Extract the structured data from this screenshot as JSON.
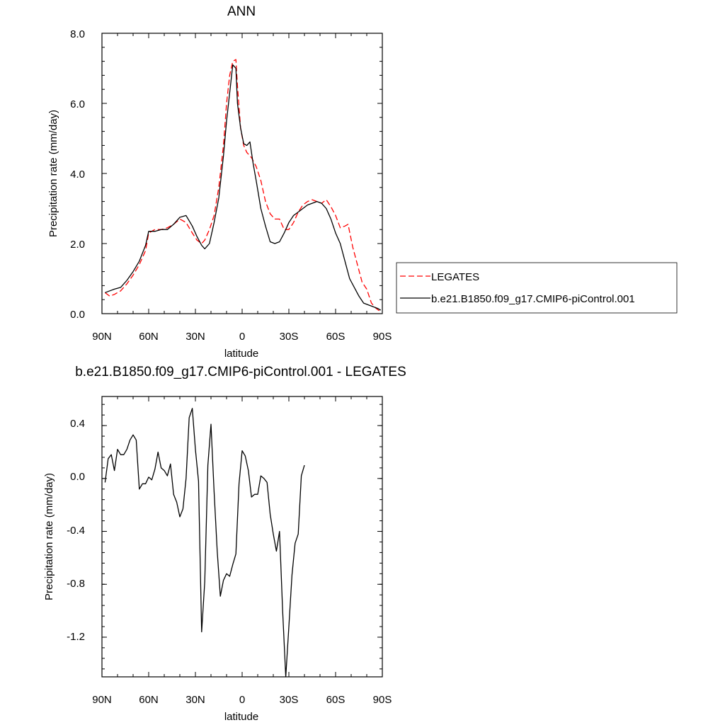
{
  "chart_data": [
    {
      "type": "line",
      "title": "ANN",
      "xlabel": "latitude",
      "ylabel": "Precipitation rate (mm/day)",
      "xlim": [
        90,
        -90
      ],
      "ylim": [
        0,
        8
      ],
      "x_tick_labels": [
        "90N",
        "60N",
        "30N",
        "0",
        "30S",
        "60S",
        "90S"
      ],
      "y_tick_labels": [
        "0.0",
        "2.0",
        "4.0",
        "6.0",
        "8.0"
      ],
      "legend_position": "right",
      "series": [
        {
          "name": "LEGATES",
          "color": "#ff0000",
          "dash": true,
          "points": [
            [
              88,
              0.6
            ],
            [
              85,
              0.5
            ],
            [
              82,
              0.55
            ],
            [
              78,
              0.65
            ],
            [
              74,
              0.85
            ],
            [
              70,
              1.1
            ],
            [
              66,
              1.4
            ],
            [
              62,
              1.8
            ],
            [
              60,
              2.3
            ],
            [
              56,
              2.4
            ],
            [
              52,
              2.4
            ],
            [
              48,
              2.45
            ],
            [
              44,
              2.55
            ],
            [
              40,
              2.7
            ],
            [
              36,
              2.6
            ],
            [
              32,
              2.3
            ],
            [
              29,
              2.1
            ],
            [
              26,
              2.0
            ],
            [
              24,
              2.1
            ],
            [
              21,
              2.4
            ],
            [
              18,
              2.8
            ],
            [
              15,
              3.6
            ],
            [
              12,
              4.8
            ],
            [
              10,
              6.0
            ],
            [
              8,
              6.8
            ],
            [
              6,
              7.2
            ],
            [
              4,
              7.25
            ],
            [
              3,
              6.5
            ],
            [
              1,
              5.3
            ],
            [
              -1,
              4.8
            ],
            [
              -3,
              4.6
            ],
            [
              -6,
              4.45
            ],
            [
              -9,
              4.2
            ],
            [
              -12,
              3.8
            ],
            [
              -15,
              3.2
            ],
            [
              -18,
              2.85
            ],
            [
              -21,
              2.7
            ],
            [
              -24,
              2.7
            ],
            [
              -27,
              2.4
            ],
            [
              -30,
              2.4
            ],
            [
              -33,
              2.6
            ],
            [
              -36,
              2.9
            ],
            [
              -39,
              3.1
            ],
            [
              -42,
              3.2
            ],
            [
              -45,
              3.25
            ],
            [
              -48,
              3.2
            ],
            [
              -51,
              3.15
            ],
            [
              -54,
              3.25
            ],
            [
              -57,
              3.05
            ],
            [
              -60,
              2.8
            ],
            [
              -63,
              2.45
            ],
            [
              -66,
              2.5
            ],
            [
              -68,
              2.55
            ],
            [
              -71,
              1.9
            ],
            [
              -74,
              1.4
            ],
            [
              -77,
              0.9
            ],
            [
              -80,
              0.7
            ],
            [
              -83,
              0.3
            ],
            [
              -86,
              0.15
            ],
            [
              -89,
              0.05
            ]
          ]
        },
        {
          "name": "b.e21.B1850.f09_g17.CMIP6-piControl.001",
          "color": "#000000",
          "dash": false,
          "points": [
            [
              88,
              0.6
            ],
            [
              85,
              0.65
            ],
            [
              82,
              0.7
            ],
            [
              78,
              0.75
            ],
            [
              74,
              0.95
            ],
            [
              70,
              1.2
            ],
            [
              66,
              1.5
            ],
            [
              62,
              1.95
            ],
            [
              60,
              2.35
            ],
            [
              56,
              2.35
            ],
            [
              52,
              2.4
            ],
            [
              48,
              2.4
            ],
            [
              44,
              2.55
            ],
            [
              40,
              2.75
            ],
            [
              36,
              2.8
            ],
            [
              32,
              2.5
            ],
            [
              29,
              2.2
            ],
            [
              26,
              1.95
            ],
            [
              24,
              1.85
            ],
            [
              21,
              2.0
            ],
            [
              18,
              2.6
            ],
            [
              15,
              3.3
            ],
            [
              12,
              4.5
            ],
            [
              10,
              5.5
            ],
            [
              8,
              6.3
            ],
            [
              6,
              7.1
            ],
            [
              4,
              7.0
            ],
            [
              3,
              6.0
            ],
            [
              1,
              5.3
            ],
            [
              -1,
              4.85
            ],
            [
              -3,
              4.8
            ],
            [
              -5,
              4.9
            ],
            [
              -7,
              4.3
            ],
            [
              -9,
              3.8
            ],
            [
              -12,
              3.0
            ],
            [
              -15,
              2.5
            ],
            [
              -18,
              2.05
            ],
            [
              -21,
              2.0
            ],
            [
              -24,
              2.05
            ],
            [
              -27,
              2.3
            ],
            [
              -30,
              2.6
            ],
            [
              -33,
              2.8
            ],
            [
              -36,
              2.9
            ],
            [
              -39,
              3.0
            ],
            [
              -42,
              3.1
            ],
            [
              -45,
              3.15
            ],
            [
              -48,
              3.2
            ],
            [
              -51,
              3.15
            ],
            [
              -54,
              3.0
            ],
            [
              -57,
              2.7
            ],
            [
              -60,
              2.3
            ],
            [
              -63,
              2.0
            ],
            [
              -66,
              1.5
            ],
            [
              -69,
              1.0
            ],
            [
              -72,
              0.75
            ],
            [
              -75,
              0.5
            ],
            [
              -78,
              0.3
            ],
            [
              -81,
              0.25
            ],
            [
              -84,
              0.2
            ],
            [
              -87,
              0.15
            ],
            [
              -89,
              0.1
            ]
          ]
        }
      ]
    },
    {
      "type": "line",
      "title": "b.e21.B1850.f09_g17.CMIP6-piControl.001 - LEGATES",
      "xlabel": "latitude",
      "ylabel": "Precipitation rate (mm/day)",
      "xlim": [
        90,
        -90
      ],
      "ylim": [
        -1.5,
        0.62
      ],
      "x_tick_labels": [
        "90N",
        "60N",
        "30N",
        "0",
        "30S",
        "60S",
        "90S"
      ],
      "y_tick_labels": [
        "0.4",
        "0.0",
        "-0.4",
        "-0.8",
        "-1.2"
      ],
      "y_tick_values": [
        0.4,
        0.0,
        -0.4,
        -0.8,
        -1.2
      ],
      "series": [
        {
          "color": "#000000",
          "dash": false,
          "points": [
            [
              88,
              -0.03
            ],
            [
              86,
              0.15
            ],
            [
              84,
              0.18
            ],
            [
              82,
              0.06
            ],
            [
              80,
              0.22
            ],
            [
              78,
              0.18
            ],
            [
              76,
              0.18
            ],
            [
              74,
              0.22
            ],
            [
              72,
              0.29
            ],
            [
              70,
              0.33
            ],
            [
              68,
              0.29
            ],
            [
              66,
              -0.08
            ],
            [
              64,
              -0.04
            ],
            [
              62,
              -0.04
            ],
            [
              60,
              0.01
            ],
            [
              58,
              -0.01
            ],
            [
              56,
              0.07
            ],
            [
              54,
              0.2
            ],
            [
              52,
              0.08
            ],
            [
              50,
              0.06
            ],
            [
              48,
              0.02
            ],
            [
              46,
              0.11
            ],
            [
              44,
              -0.12
            ],
            [
              42,
              -0.18
            ],
            [
              40,
              -0.29
            ],
            [
              38,
              -0.23
            ],
            [
              36,
              0.0
            ],
            [
              34,
              0.46
            ],
            [
              32,
              0.53
            ],
            [
              30,
              0.22
            ],
            [
              28,
              -0.02
            ],
            [
              26,
              -1.16
            ],
            [
              24,
              -0.78
            ],
            [
              22,
              0.1
            ],
            [
              20,
              0.41
            ],
            [
              18,
              -0.1
            ],
            [
              16,
              -0.55
            ],
            [
              14,
              -0.89
            ],
            [
              12,
              -0.77
            ],
            [
              10,
              -0.72
            ],
            [
              8,
              -0.74
            ],
            [
              6,
              -0.65
            ],
            [
              4,
              -0.57
            ],
            [
              2,
              -0.04
            ],
            [
              0,
              0.21
            ],
            [
              -2,
              0.17
            ],
            [
              -4,
              0.06
            ],
            [
              -6,
              -0.14
            ],
            [
              -8,
              -0.12
            ],
            [
              -10,
              -0.12
            ],
            [
              -12,
              0.02
            ],
            [
              -14,
              0.0
            ],
            [
              -16,
              -0.03
            ],
            [
              -18,
              -0.27
            ],
            [
              -20,
              -0.42
            ],
            [
              -22,
              -0.55
            ],
            [
              -24,
              -0.4
            ],
            [
              -26,
              -1.0
            ],
            [
              -28,
              -1.5
            ],
            [
              -30,
              -1.12
            ],
            [
              -32,
              -0.73
            ],
            [
              -34,
              -0.49
            ],
            [
              -36,
              -0.42
            ],
            [
              -38,
              0.02
            ],
            [
              -40,
              0.1
            ]
          ]
        }
      ]
    }
  ]
}
